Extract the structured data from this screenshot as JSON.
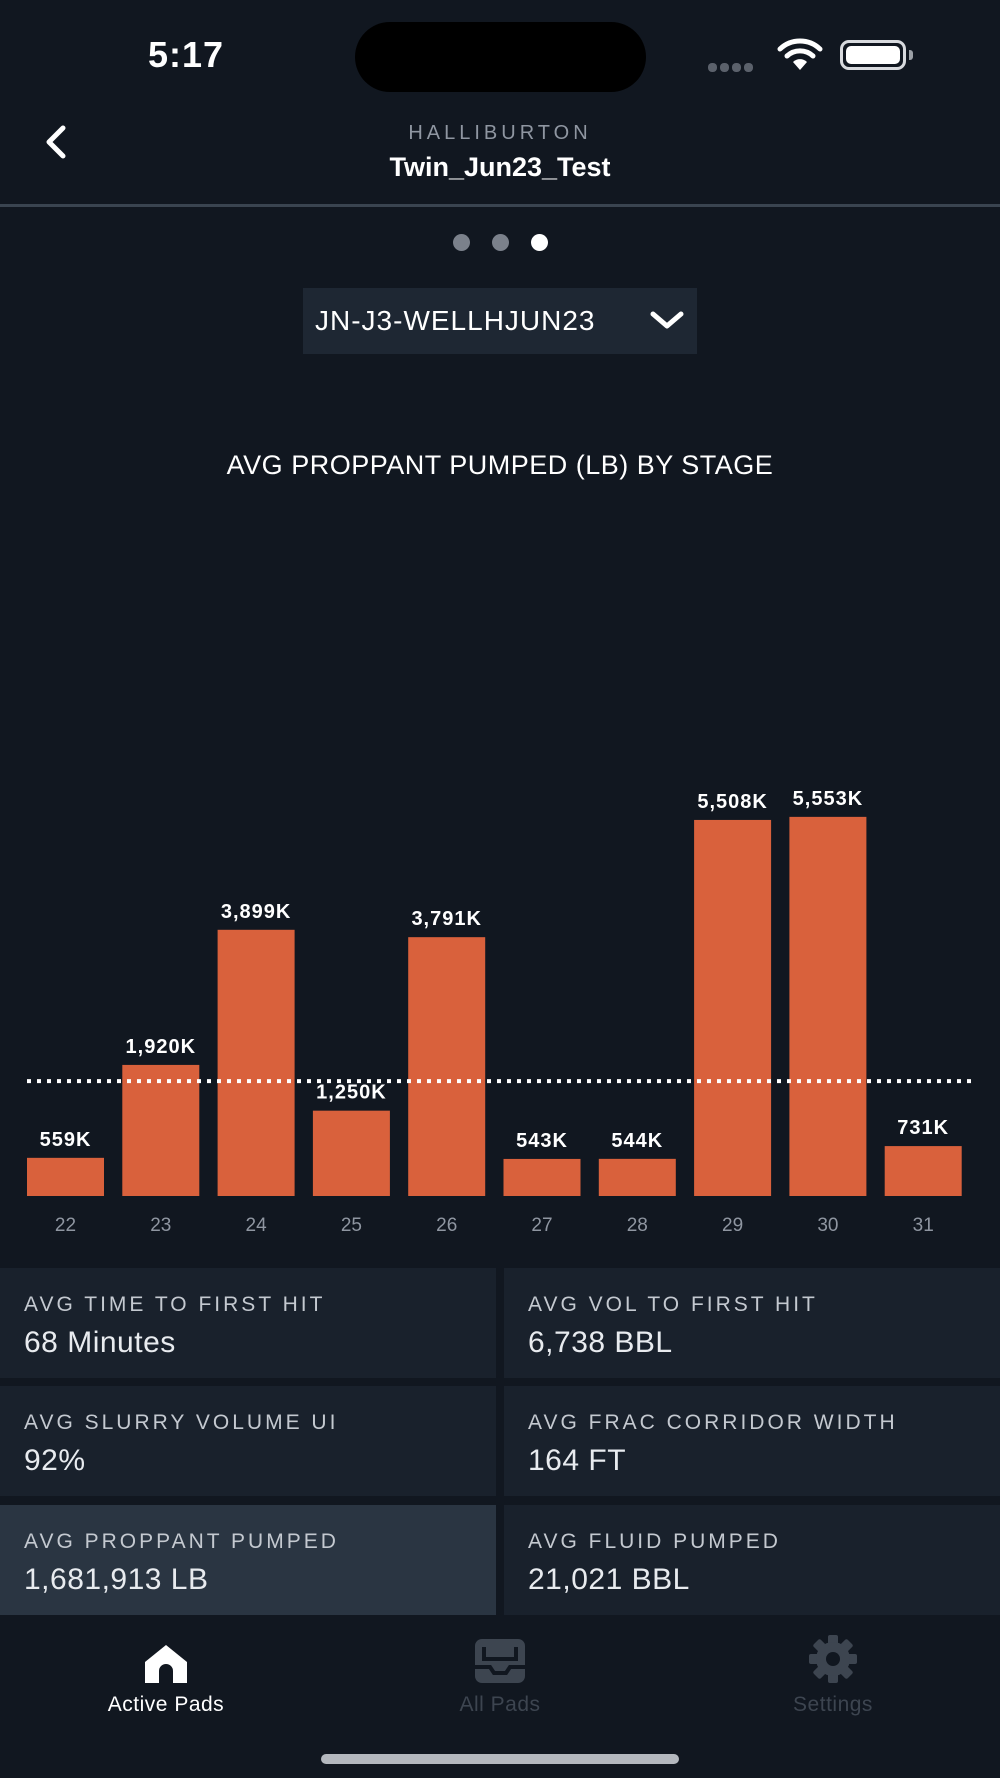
{
  "status_bar": {
    "time": "5:17"
  },
  "header": {
    "company": "HALLIBURTON",
    "title": "Twin_Jun23_Test"
  },
  "pager": {
    "count": 3,
    "active_index": 2
  },
  "well_selector": {
    "value": "JN-J3-WELLHJUN23"
  },
  "chart_data": {
    "type": "bar",
    "title": "AVG PROPPANT PUMPED (LB) BY STAGE",
    "categories": [
      "22",
      "23",
      "24",
      "25",
      "26",
      "27",
      "28",
      "29",
      "30",
      "31"
    ],
    "values": [
      559,
      1920,
      3899,
      1250,
      3791,
      543,
      544,
      5508,
      5553,
      731
    ],
    "data_labels": [
      "559K",
      "1,920K",
      "3,899K",
      "1,250K",
      "3,791K",
      "543K",
      "544K",
      "5,508K",
      "5,553K",
      "731K"
    ],
    "reference_line": 1682,
    "ylim": [
      0,
      5800
    ],
    "bar_color": "#d9613c",
    "reference_line_color": "#ffffff"
  },
  "stats": [
    {
      "label": "AVG TIME TO FIRST HIT",
      "value": "68 Minutes"
    },
    {
      "label": "AVG VOL TO FIRST HIT",
      "value": "6,738 BBL"
    },
    {
      "label": "AVG SLURRY VOLUME UI",
      "value": "92%"
    },
    {
      "label": "AVG FRAC CORRIDOR WIDTH",
      "value": "164 FT"
    },
    {
      "label": "AVG PROPPANT PUMPED",
      "value": "1,681,913 LB"
    },
    {
      "label": "AVG FLUID PUMPED",
      "value": "21,021 BBL"
    }
  ],
  "tabs": [
    {
      "label": "Active Pads",
      "icon": "home-icon",
      "active": true
    },
    {
      "label": "All Pads",
      "icon": "inbox-icon",
      "active": false
    },
    {
      "label": "Settings",
      "icon": "gear-icon",
      "active": false
    }
  ]
}
